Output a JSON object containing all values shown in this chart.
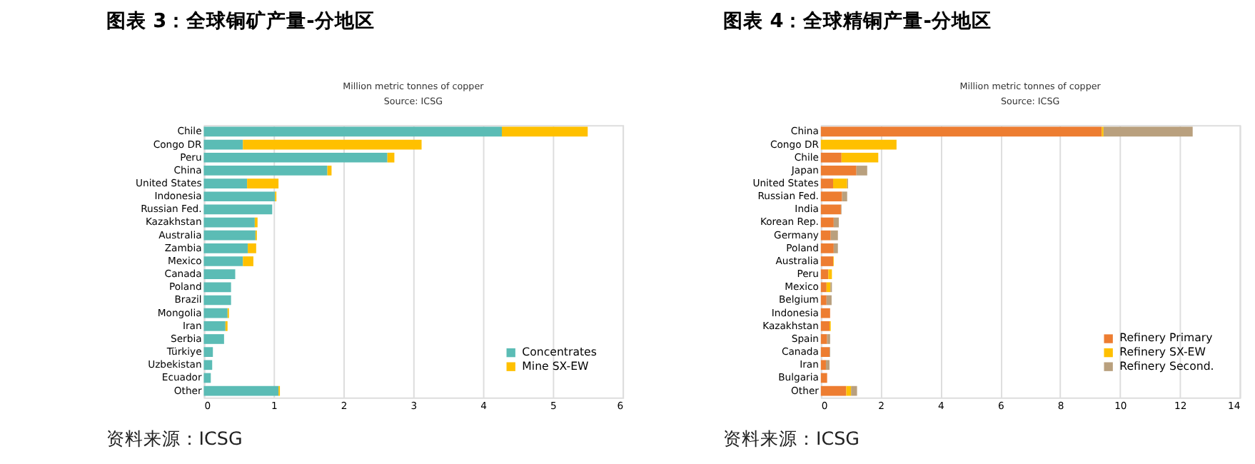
{
  "chart_data": [
    {
      "type": "bar",
      "orientation": "horizontal",
      "stacked": true,
      "title": "图表 3：全球铜矿产量-分地区",
      "subtitle": "Million metric tonnes of copper",
      "annotations": [
        "Source: ICSG",
        "资料来源：ICSG"
      ],
      "categories": [
        "Chile",
        "Congo DR",
        "Peru",
        "China",
        "United States",
        "Indonesia",
        "Russian Fed.",
        "Kazakhstan",
        "Australia",
        "Zambia",
        "Mexico",
        "Canada",
        "Poland",
        "Brazil",
        "Mongolia",
        "Iran",
        "Serbia",
        "Türkiye",
        "Uzbekistan",
        "Ecuador",
        "Other"
      ],
      "series": [
        {
          "name": "Concentrates",
          "color": "#5bbcb5",
          "values": [
            4.27,
            0.56,
            2.63,
            1.77,
            0.62,
            1.02,
            0.98,
            0.73,
            0.74,
            0.63,
            0.56,
            0.45,
            0.39,
            0.39,
            0.34,
            0.31,
            0.29,
            0.13,
            0.12,
            0.1,
            1.07
          ]
        },
        {
          "name": "Mine SX-EW",
          "color": "#ffc000",
          "values": [
            1.23,
            2.56,
            0.1,
            0.06,
            0.45,
            0.02,
            0,
            0.04,
            0.02,
            0.12,
            0.15,
            0,
            0,
            0,
            0.02,
            0.03,
            0,
            0,
            0,
            0,
            0.02
          ]
        }
      ],
      "xlim": [
        0,
        6
      ],
      "xticks": [
        0,
        1,
        2,
        3,
        4,
        5,
        6
      ],
      "grid": "x",
      "legend": "bottom right"
    },
    {
      "type": "bar",
      "orientation": "horizontal",
      "stacked": true,
      "title": "图表 4：全球精铜产量-分地区",
      "subtitle": "Million metric tonnes of copper",
      "annotations": [
        "Source: ICSG",
        "资料来源：ICSG"
      ],
      "categories": [
        "China",
        "Congo DR",
        "Chile",
        "Japan",
        "United States",
        "Russian Fed.",
        "India",
        "Korean Rep.",
        "Germany",
        "Poland",
        "Australia",
        "Peru",
        "Mexico",
        "Belgium",
        "Indonesia",
        "Kazakhstan",
        "Spain",
        "Canada",
        "Iran",
        "Bulgaria",
        "Other"
      ],
      "series": [
        {
          "name": "Refinery Primary",
          "color": "#ed7d31",
          "values": [
            9.39,
            0,
            0.69,
            1.19,
            0.41,
            0.71,
            0.67,
            0.43,
            0.33,
            0.43,
            0.41,
            0.25,
            0.19,
            0.19,
            0.31,
            0.29,
            0.21,
            0.29,
            0.17,
            0.21,
            0.85
          ]
        },
        {
          "name": "Refinery SX-EW",
          "color": "#ffc000",
          "values": [
            0.06,
            2.53,
            1.23,
            0,
            0.47,
            0,
            0,
            0,
            0,
            0,
            0.02,
            0.12,
            0.13,
            0,
            null,
            0.04,
            0,
            0,
            0,
            0,
            0.16
          ]
        },
        {
          "name": "Refinery Second.",
          "color": "#b9a07e",
          "values": [
            2.98,
            0,
            0,
            0.36,
            0.03,
            0.17,
            0.02,
            0.17,
            0.24,
            0.14,
            0,
            0,
            0.05,
            0.17,
            0,
            0,
            0.1,
            0.02,
            0.12,
            0,
            0.2
          ]
        }
      ],
      "xlim": [
        0,
        14
      ],
      "xticks": [
        0,
        2,
        4,
        6,
        8,
        10,
        12,
        14
      ],
      "grid": "x",
      "legend": "bottom right"
    }
  ]
}
